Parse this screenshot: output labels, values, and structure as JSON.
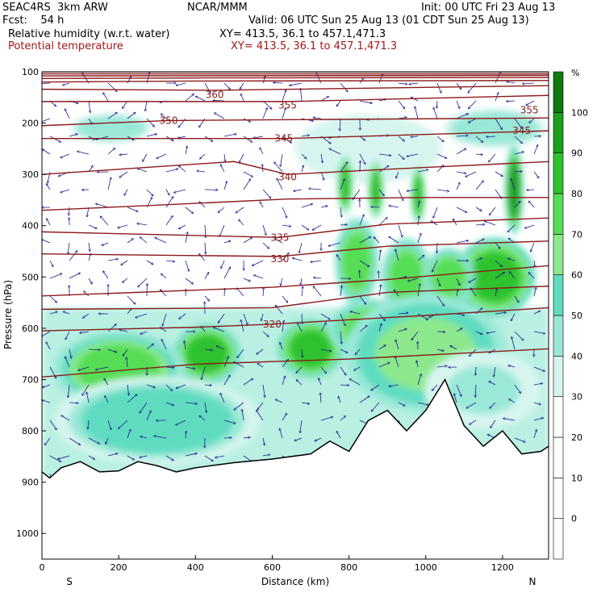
{
  "header": {
    "model": "SEAC4RS  3km ARW",
    "org": "NCAR/MMM",
    "init": "Init: 00 UTC Fri 23 Aug 13",
    "fcst": "Fcst:    54 h",
    "valid": "Valid: 06 UTC Sun 25 Aug 13 (01 CDT Sun 25 Aug 13)",
    "field1": "Relative humidity (w.r.t. water)",
    "xy1": "XY= 413.5, 36.1 to 457.1,471.3",
    "field2": "Potential temperature",
    "xy2": "XY= 413.5, 36.1 to 457.1,471.3"
  },
  "chart_data": {
    "type": "cross-section",
    "xlabel": "Distance (km)",
    "ylabel": "Pressure (hPa)",
    "x_ticks": [
      0,
      200,
      400,
      600,
      800,
      1000,
      1200
    ],
    "y_ticks": [
      100,
      200,
      300,
      400,
      500,
      600,
      700,
      800,
      900,
      1000
    ],
    "xlim": [
      0,
      1320
    ],
    "ylim": [
      1050,
      100
    ],
    "left_end_label": "S",
    "right_end_label": "N",
    "colorbar": {
      "unit": "%",
      "ticks": [
        0,
        10,
        20,
        30,
        40,
        50,
        60,
        70,
        80,
        90,
        100
      ],
      "levels": [
        -10,
        0,
        10,
        20,
        30,
        40,
        50,
        60,
        70,
        80,
        90,
        100,
        110
      ],
      "colors": [
        "#ffffff",
        "#ffffff",
        "#ffffff",
        "#ffffff",
        "#d6f5ee",
        "#9ae8d7",
        "#5fdcc0",
        "#8ce88c",
        "#55dd55",
        "#2ec22e",
        "#1a9f1a",
        "#0f7a0f",
        "#086008"
      ]
    },
    "theta_labels": [
      {
        "text": "360",
        "x": 450,
        "p": 145
      },
      {
        "text": "355",
        "x": 640,
        "p": 165
      },
      {
        "text": "355",
        "x": 1270,
        "p": 175
      },
      {
        "text": "350",
        "x": 330,
        "p": 195
      },
      {
        "text": "345",
        "x": 630,
        "p": 230
      },
      {
        "text": "345",
        "x": 1250,
        "p": 215
      },
      {
        "text": "340",
        "x": 640,
        "p": 305
      },
      {
        "text": "335",
        "x": 620,
        "p": 423
      },
      {
        "text": "330",
        "x": 620,
        "p": 465
      },
      {
        "text": "320",
        "x": 600,
        "p": 592
      }
    ],
    "theta_contours": [
      {
        "theta": 375,
        "points": [
          [
            0,
            100
          ],
          [
            1320,
            100
          ]
        ]
      },
      {
        "theta": 372,
        "points": [
          [
            0,
            104
          ],
          [
            1320,
            104
          ]
        ]
      },
      {
        "theta": 369,
        "points": [
          [
            0,
            108
          ],
          [
            1320,
            107
          ]
        ]
      },
      {
        "theta": 366,
        "points": [
          [
            0,
            113
          ],
          [
            400,
            112
          ],
          [
            1320,
            111
          ]
        ]
      },
      {
        "theta": 363,
        "points": [
          [
            0,
            120
          ],
          [
            400,
            118
          ],
          [
            1320,
            117
          ]
        ]
      },
      {
        "theta": 360,
        "points": [
          [
            0,
            134
          ],
          [
            450,
            136
          ],
          [
            1320,
            127
          ]
        ]
      },
      {
        "theta": 355,
        "points": [
          [
            0,
            158
          ],
          [
            640,
            158
          ],
          [
            1320,
            146
          ]
        ]
      },
      {
        "theta": 350,
        "points": [
          [
            0,
            205
          ],
          [
            330,
            195
          ],
          [
            1320,
            190
          ]
        ]
      },
      {
        "theta": 345,
        "points": [
          [
            0,
            230
          ],
          [
            640,
            230
          ],
          [
            1320,
            215
          ]
        ]
      },
      {
        "theta": 340,
        "points": [
          [
            0,
            300
          ],
          [
            200,
            290
          ],
          [
            500,
            275
          ],
          [
            640,
            300
          ],
          [
            900,
            290
          ],
          [
            1320,
            275
          ]
        ]
      },
      {
        "theta": 338,
        "points": [
          [
            0,
            370
          ],
          [
            300,
            360
          ],
          [
            640,
            348
          ],
          [
            1000,
            345
          ],
          [
            1320,
            345
          ]
        ]
      },
      {
        "theta": 335,
        "points": [
          [
            0,
            412
          ],
          [
            620,
            423
          ],
          [
            900,
            397
          ],
          [
            1320,
            385
          ]
        ]
      },
      {
        "theta": 330,
        "points": [
          [
            0,
            455
          ],
          [
            620,
            460
          ],
          [
            900,
            440
          ],
          [
            1320,
            430
          ]
        ]
      },
      {
        "theta": 325,
        "points": [
          [
            0,
            537
          ],
          [
            600,
            520
          ],
          [
            900,
            505
          ],
          [
            1320,
            478
          ]
        ]
      },
      {
        "theta": 322,
        "points": [
          [
            0,
            563
          ],
          [
            600,
            560
          ],
          [
            900,
            530
          ],
          [
            1320,
            518
          ]
        ]
      },
      {
        "theta": 320,
        "points": [
          [
            0,
            605
          ],
          [
            400,
            598
          ],
          [
            600,
            592
          ],
          [
            1000,
            575
          ],
          [
            1320,
            560
          ]
        ]
      },
      {
        "theta": 315,
        "points": [
          [
            0,
            695
          ],
          [
            400,
            670
          ],
          [
            800,
            660
          ],
          [
            1320,
            640
          ]
        ]
      }
    ],
    "terrain_pressure": [
      [
        0,
        880
      ],
      [
        20,
        892
      ],
      [
        50,
        872
      ],
      [
        100,
        860
      ],
      [
        150,
        880
      ],
      [
        200,
        878
      ],
      [
        250,
        860
      ],
      [
        300,
        868
      ],
      [
        350,
        880
      ],
      [
        400,
        872
      ],
      [
        500,
        862
      ],
      [
        600,
        855
      ],
      [
        700,
        845
      ],
      [
        750,
        820
      ],
      [
        800,
        840
      ],
      [
        850,
        780
      ],
      [
        900,
        760
      ],
      [
        950,
        800
      ],
      [
        1000,
        760
      ],
      [
        1050,
        700
      ],
      [
        1100,
        790
      ],
      [
        1150,
        830
      ],
      [
        1200,
        800
      ],
      [
        1250,
        845
      ],
      [
        1300,
        840
      ],
      [
        1320,
        830
      ]
    ],
    "rh_blobs": [
      {
        "x": 180,
        "p": 210,
        "rx": 110,
        "rp": 30,
        "rh": 48
      },
      {
        "x": 1180,
        "p": 210,
        "rx": 140,
        "rp": 40,
        "rh": 48
      },
      {
        "x": 850,
        "p": 250,
        "rx": 200,
        "rp": 70,
        "rh": 35
      },
      {
        "x": 790,
        "p": 320,
        "rx": 22,
        "rp": 60,
        "rh": 85
      },
      {
        "x": 870,
        "p": 330,
        "rx": 22,
        "rp": 60,
        "rh": 85
      },
      {
        "x": 980,
        "p": 340,
        "rx": 20,
        "rp": 60,
        "rh": 80
      },
      {
        "x": 1230,
        "p": 330,
        "rx": 25,
        "rp": 90,
        "rh": 95
      },
      {
        "x": 1180,
        "p": 500,
        "rx": 110,
        "rp": 80,
        "rh": 88
      },
      {
        "x": 820,
        "p": 470,
        "rx": 60,
        "rp": 90,
        "rh": 78
      },
      {
        "x": 950,
        "p": 500,
        "rx": 70,
        "rp": 80,
        "rh": 75
      },
      {
        "x": 1060,
        "p": 500,
        "rx": 70,
        "rp": 60,
        "rh": 72
      },
      {
        "x": 430,
        "p": 650,
        "rx": 90,
        "rp": 60,
        "rh": 88
      },
      {
        "x": 700,
        "p": 640,
        "rx": 90,
        "rp": 60,
        "rh": 88
      },
      {
        "x": 860,
        "p": 600,
        "rx": 120,
        "rp": 60,
        "rh": 78
      },
      {
        "x": 200,
        "p": 680,
        "rx": 180,
        "rp": 80,
        "rh": 72
      },
      {
        "x": 1000,
        "p": 650,
        "rx": 220,
        "rp": 120,
        "rh": 65
      },
      {
        "x": 300,
        "p": 780,
        "rx": 280,
        "rp": 90,
        "rh": 55
      },
      {
        "x": 1150,
        "p": 720,
        "rx": 160,
        "rp": 80,
        "rh": 40
      }
    ]
  }
}
